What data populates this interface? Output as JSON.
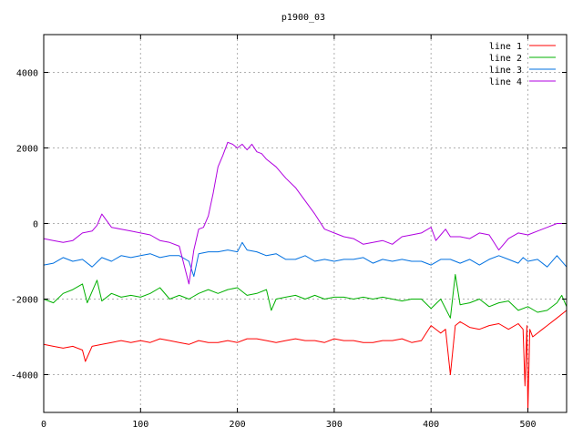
{
  "chart_data": {
    "type": "line",
    "title": "p1900_03",
    "xlabel": "",
    "ylabel": "",
    "xlim": [
      0,
      540
    ],
    "ylim": [
      -5000,
      5000
    ],
    "x_ticks": [
      0,
      100,
      200,
      300,
      400,
      500
    ],
    "y_ticks": [
      -4000,
      -2000,
      0,
      2000,
      4000
    ],
    "grid": true,
    "legend_position": "top-right",
    "series": [
      {
        "name": "line 1",
        "color": "#ff0000",
        "x": [
          0,
          10,
          20,
          30,
          40,
          43,
          50,
          60,
          70,
          80,
          90,
          100,
          110,
          120,
          130,
          140,
          150,
          160,
          170,
          180,
          190,
          200,
          210,
          220,
          230,
          240,
          250,
          260,
          270,
          280,
          290,
          300,
          310,
          320,
          330,
          340,
          350,
          360,
          370,
          380,
          390,
          400,
          410,
          415,
          420,
          425,
          430,
          440,
          450,
          460,
          470,
          480,
          490,
          495,
          497,
          499,
          500,
          502,
          505,
          510,
          515,
          520,
          530,
          540
        ],
        "values": [
          -3200,
          -3250,
          -3300,
          -3250,
          -3350,
          -3650,
          -3250,
          -3200,
          -3150,
          -3100,
          -3150,
          -3100,
          -3150,
          -3050,
          -3100,
          -3150,
          -3200,
          -3100,
          -3150,
          -3150,
          -3100,
          -3150,
          -3050,
          -3050,
          -3100,
          -3150,
          -3100,
          -3050,
          -3100,
          -3100,
          -3150,
          -3050,
          -3100,
          -3100,
          -3150,
          -3150,
          -3100,
          -3100,
          -3050,
          -3150,
          -3100,
          -2700,
          -2900,
          -2800,
          -4000,
          -2700,
          -2600,
          -2750,
          -2800,
          -2700,
          -2650,
          -2800,
          -2650,
          -2800,
          -4300,
          -2700,
          -5000,
          -2800,
          -3000,
          -2900,
          -2800,
          -2700,
          -2500,
          -2300
        ]
      },
      {
        "name": "line 2",
        "color": "#00b000",
        "x": [
          0,
          10,
          20,
          30,
          40,
          45,
          50,
          55,
          60,
          70,
          80,
          90,
          100,
          110,
          120,
          130,
          140,
          150,
          160,
          170,
          180,
          190,
          200,
          210,
          220,
          230,
          235,
          240,
          250,
          260,
          270,
          280,
          290,
          300,
          310,
          320,
          330,
          340,
          350,
          360,
          370,
          380,
          390,
          400,
          410,
          420,
          425,
          430,
          440,
          450,
          460,
          470,
          480,
          490,
          500,
          510,
          520,
          530,
          535,
          540
        ],
        "values": [
          -2000,
          -2100,
          -1850,
          -1750,
          -1600,
          -2100,
          -1800,
          -1500,
          -2050,
          -1850,
          -1950,
          -1900,
          -1950,
          -1850,
          -1700,
          -2000,
          -1900,
          -2000,
          -1850,
          -1750,
          -1850,
          -1750,
          -1700,
          -1900,
          -1850,
          -1750,
          -2300,
          -2000,
          -1950,
          -1900,
          -2000,
          -1900,
          -2000,
          -1950,
          -1950,
          -2000,
          -1950,
          -2000,
          -1950,
          -2000,
          -2050,
          -2000,
          -2000,
          -2250,
          -2000,
          -2500,
          -1350,
          -2150,
          -2100,
          -2000,
          -2200,
          -2100,
          -2050,
          -2300,
          -2200,
          -2350,
          -2300,
          -2100,
          -1900,
          -2200
        ]
      },
      {
        "name": "line 3",
        "color": "#0070e0",
        "x": [
          0,
          10,
          20,
          30,
          40,
          50,
          60,
          70,
          80,
          90,
          100,
          110,
          120,
          130,
          140,
          150,
          155,
          160,
          170,
          180,
          190,
          200,
          205,
          210,
          220,
          230,
          240,
          250,
          260,
          270,
          280,
          290,
          300,
          310,
          320,
          330,
          340,
          350,
          360,
          370,
          380,
          390,
          400,
          410,
          420,
          430,
          440,
          450,
          460,
          470,
          480,
          490,
          495,
          500,
          510,
          520,
          530,
          540
        ],
        "values": [
          -1100,
          -1050,
          -900,
          -1000,
          -950,
          -1150,
          -900,
          -1000,
          -850,
          -900,
          -850,
          -800,
          -900,
          -850,
          -850,
          -1000,
          -1400,
          -800,
          -750,
          -750,
          -700,
          -750,
          -500,
          -700,
          -750,
          -850,
          -800,
          -950,
          -950,
          -850,
          -1000,
          -950,
          -1000,
          -950,
          -950,
          -900,
          -1050,
          -950,
          -1000,
          -950,
          -1000,
          -1000,
          -1100,
          -950,
          -950,
          -1050,
          -950,
          -1100,
          -950,
          -850,
          -950,
          -1050,
          -900,
          -1000,
          -950,
          -1150,
          -850,
          -1150
        ]
      },
      {
        "name": "line 4",
        "color": "#b000e0",
        "x": [
          0,
          10,
          20,
          30,
          40,
          50,
          55,
          60,
          70,
          80,
          90,
          100,
          110,
          120,
          130,
          140,
          150,
          155,
          160,
          165,
          170,
          175,
          180,
          185,
          190,
          195,
          200,
          205,
          210,
          215,
          220,
          225,
          230,
          240,
          250,
          260,
          270,
          280,
          290,
          300,
          310,
          320,
          330,
          340,
          350,
          360,
          370,
          380,
          390,
          400,
          405,
          410,
          415,
          420,
          430,
          440,
          450,
          460,
          470,
          480,
          490,
          500,
          510,
          520,
          530,
          540
        ],
        "values": [
          -400,
          -450,
          -500,
          -450,
          -250,
          -200,
          -50,
          250,
          -100,
          -150,
          -200,
          -250,
          -300,
          -450,
          -500,
          -600,
          -1600,
          -700,
          -150,
          -100,
          200,
          800,
          1500,
          1800,
          2150,
          2100,
          2000,
          2100,
          1950,
          2100,
          1900,
          1850,
          1700,
          1500,
          1200,
          950,
          600,
          250,
          -150,
          -250,
          -350,
          -400,
          -550,
          -500,
          -450,
          -550,
          -350,
          -300,
          -250,
          -100,
          -450,
          -300,
          -150,
          -350,
          -350,
          -400,
          -250,
          -300,
          -700,
          -400,
          -250,
          -300,
          -200,
          -100,
          0,
          0
        ]
      }
    ]
  }
}
